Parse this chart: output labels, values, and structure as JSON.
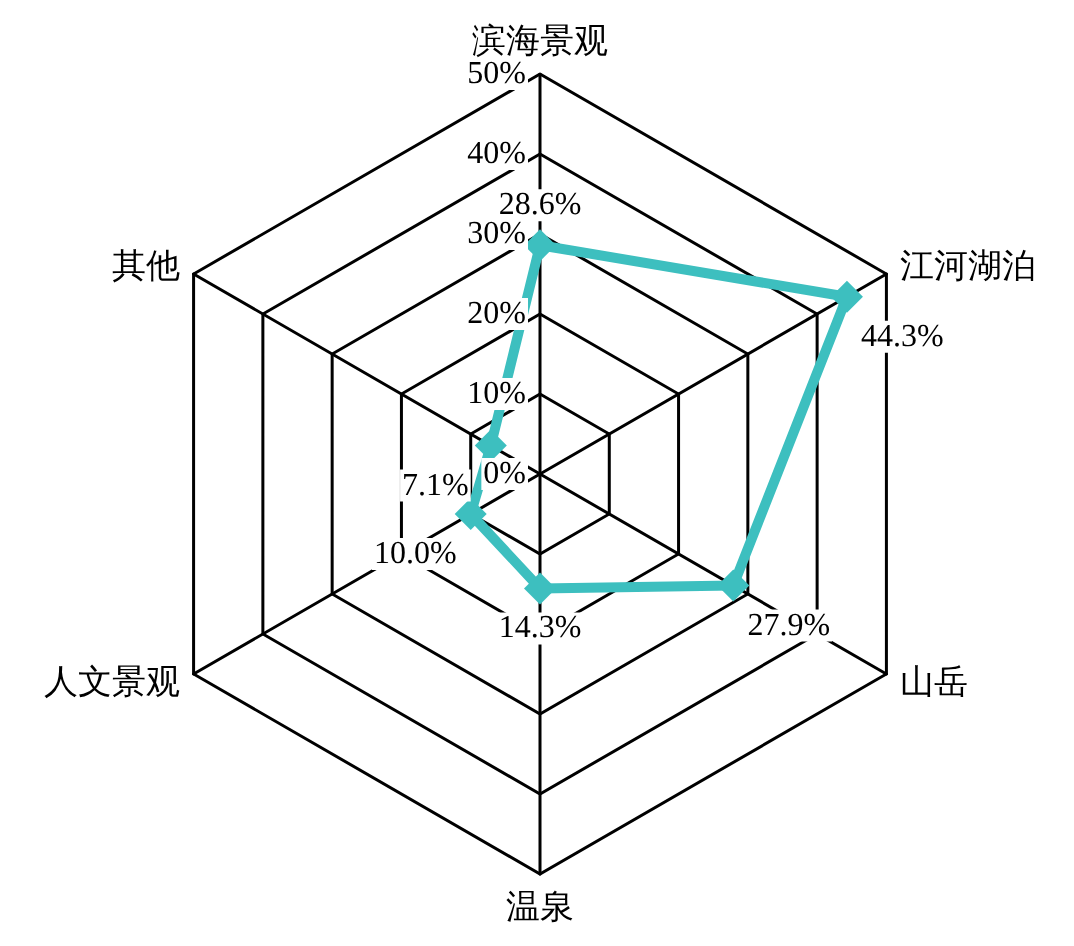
{
  "chart_data": {
    "type": "radar",
    "categories": [
      "滨海景观",
      "江河湖泊",
      "山岳",
      "温泉",
      "人文景观",
      "其他"
    ],
    "series": [
      {
        "color": "#3dbfbf",
        "values": [
          28.6,
          44.3,
          27.9,
          14.3,
          10.0,
          7.1
        ],
        "value_labels": [
          "28.6%",
          "44.3%",
          "27.9%",
          "14.3%",
          "10.0%",
          "7.1%"
        ]
      }
    ],
    "ylim": [
      0,
      50
    ],
    "yticks": [
      {
        "value": 0,
        "label": "0%"
      },
      {
        "value": 10,
        "label": "10%"
      },
      {
        "value": 20,
        "label": "20%"
      },
      {
        "value": 30,
        "label": "30%"
      },
      {
        "value": 40,
        "label": "40%"
      },
      {
        "value": 50,
        "label": "50%"
      }
    ],
    "marker": "diamond"
  }
}
